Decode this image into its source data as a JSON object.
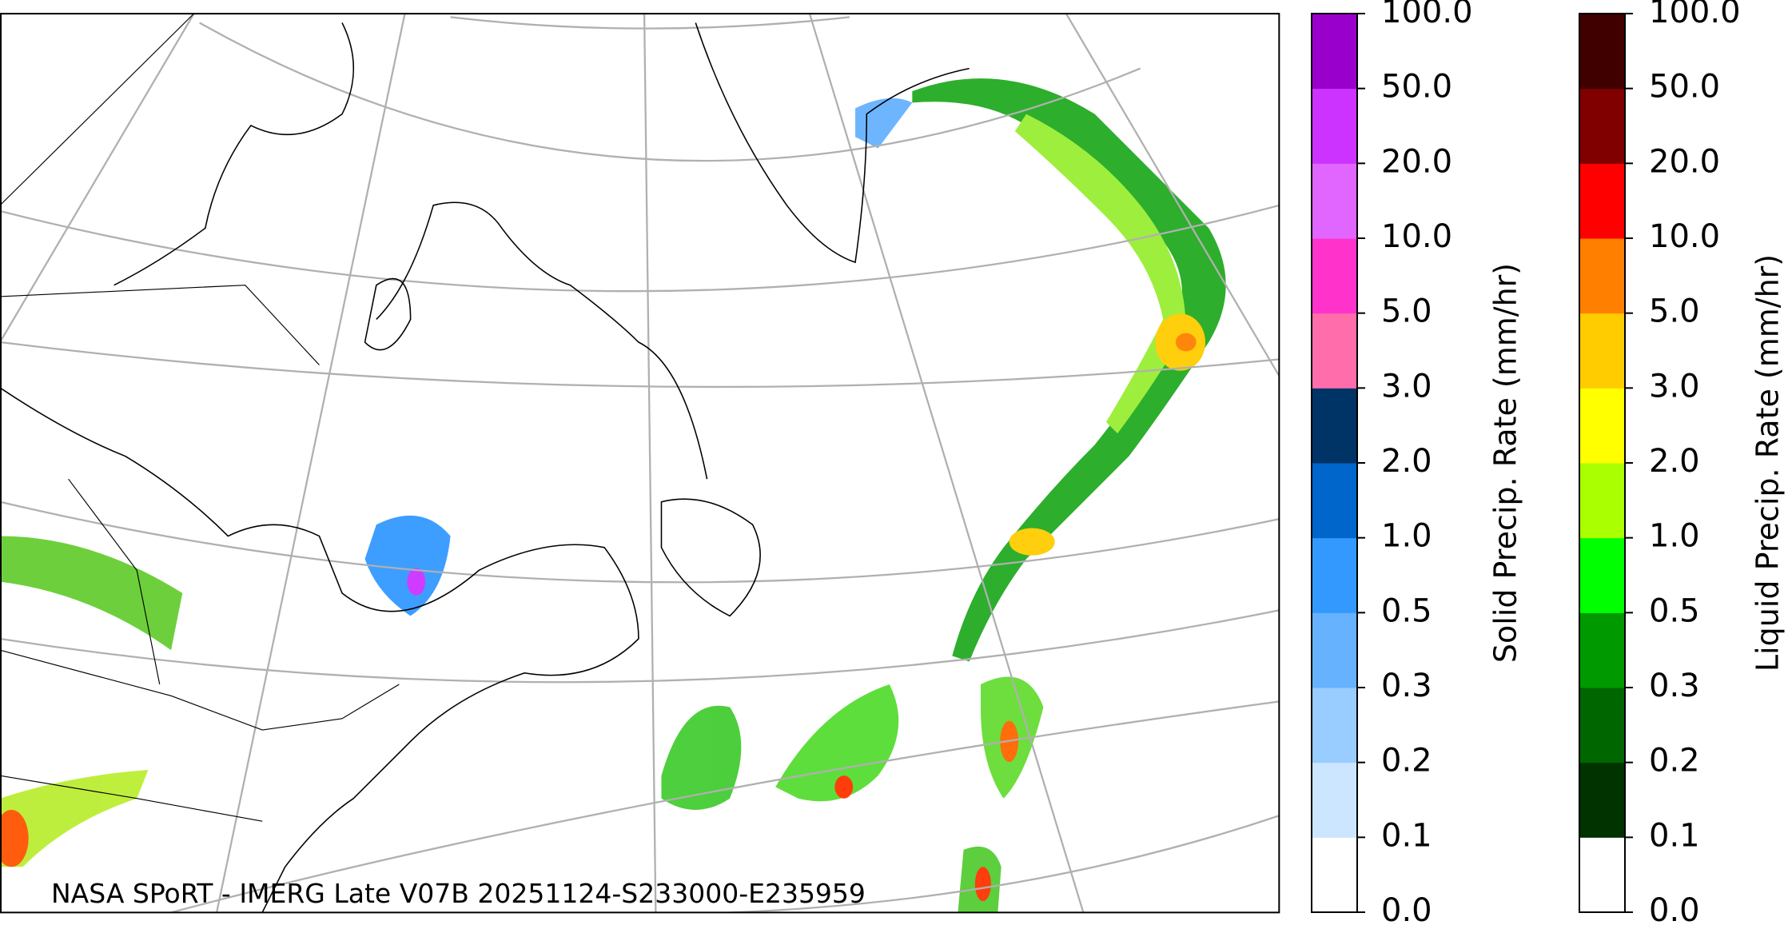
{
  "map": {
    "credit": "NASA SPoRT - IMERG Late V07B 20251124-S233000-E235959"
  },
  "colorbars": [
    {
      "label": "Solid Precip. Rate (mm/hr)",
      "ticks": [
        {
          "value": 0,
          "label": "0.0"
        },
        {
          "value": 0.1,
          "label": "0.1"
        },
        {
          "value": 0.2,
          "label": "0.2"
        },
        {
          "value": 0.3,
          "label": "0.3"
        },
        {
          "value": 0.5,
          "label": "0.5"
        },
        {
          "value": 1,
          "label": "1.0"
        },
        {
          "value": 2,
          "label": "2.0"
        },
        {
          "value": 3,
          "label": "3.0"
        },
        {
          "value": 5,
          "label": "5.0"
        },
        {
          "value": 10,
          "label": "10.0"
        },
        {
          "value": 20,
          "label": "20.0"
        },
        {
          "value": 50,
          "label": "50.0"
        },
        {
          "value": 100,
          "label": "100.0"
        }
      ],
      "colors": [
        "#ffffff",
        "#cce6ff",
        "#99ccff",
        "#66b2ff",
        "#3399ff",
        "#0066cc",
        "#003366",
        "#ff6eaa",
        "#ff33cc",
        "#e066ff",
        "#cc33ff",
        "#9900cc"
      ]
    },
    {
      "label": "Liquid Precip. Rate (mm/hr)",
      "ticks": [
        {
          "value": 0,
          "label": "0.0"
        },
        {
          "value": 0.1,
          "label": "0.1"
        },
        {
          "value": 0.2,
          "label": "0.2"
        },
        {
          "value": 0.3,
          "label": "0.3"
        },
        {
          "value": 0.5,
          "label": "0.5"
        },
        {
          "value": 1,
          "label": "1.0"
        },
        {
          "value": 2,
          "label": "2.0"
        },
        {
          "value": 3,
          "label": "3.0"
        },
        {
          "value": 5,
          "label": "5.0"
        },
        {
          "value": 10,
          "label": "10.0"
        },
        {
          "value": 20,
          "label": "20.0"
        },
        {
          "value": 50,
          "label": "50.0"
        },
        {
          "value": 100,
          "label": "100.0"
        }
      ],
      "colors": [
        "#ffffff",
        "#003300",
        "#006600",
        "#009900",
        "#00ff00",
        "#aaff00",
        "#ffff00",
        "#ffcc00",
        "#ff8000",
        "#ff0000",
        "#800000",
        "#400000"
      ]
    }
  ]
}
